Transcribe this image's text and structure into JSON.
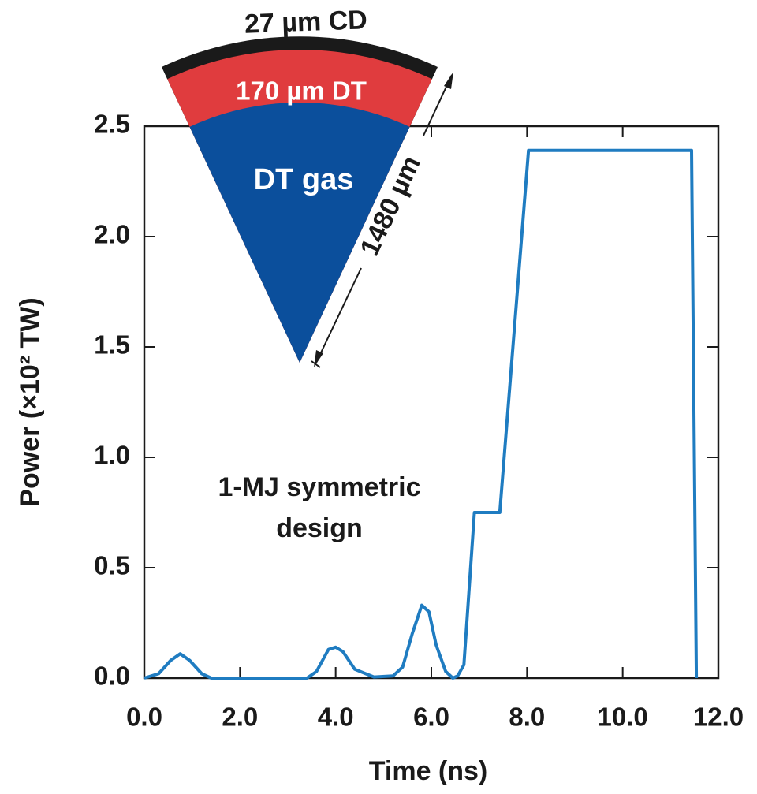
{
  "chart_data": {
    "type": "line",
    "xlabel": "Time (ns)",
    "ylabel": "Power (×10² TW)",
    "annotation": [
      "1-MJ symmetric",
      "design"
    ],
    "inset": {
      "outer_layer": "27 µm CD",
      "middle_layer": "170 µm DT",
      "core": "DT gas",
      "radius": "1480 µm"
    },
    "x": [
      0,
      0.3,
      0.55,
      0.75,
      0.95,
      1.2,
      1.4,
      3.4,
      3.6,
      3.85,
      4.0,
      4.15,
      4.4,
      4.8,
      5.2,
      5.4,
      5.6,
      5.8,
      5.95,
      6.1,
      6.3,
      6.45,
      6.55,
      6.68,
      6.9,
      7.43,
      8.03,
      11.44,
      11.54
    ],
    "values": [
      0,
      0.02,
      0.08,
      0.11,
      0.08,
      0.02,
      0,
      0,
      0.03,
      0.13,
      0.14,
      0.12,
      0.04,
      0.005,
      0.01,
      0.05,
      0.2,
      0.33,
      0.3,
      0.15,
      0.03,
      0,
      0.01,
      0.06,
      0.75,
      0.75,
      2.39,
      2.39,
      0
    ],
    "color": "#1f7cc1",
    "xlim": [
      0,
      12
    ],
    "xticks": [
      {
        "value": 0,
        "label": "0.0"
      },
      {
        "value": 2,
        "label": "2.0"
      },
      {
        "value": 4,
        "label": "4.0"
      },
      {
        "value": 6,
        "label": "6.0"
      },
      {
        "value": 8,
        "label": "8.0"
      },
      {
        "value": 10,
        "label": "10.0"
      },
      {
        "value": 12,
        "label": "12.0"
      }
    ],
    "ylim": [
      0,
      2.5
    ],
    "yticks": [
      {
        "value": 0,
        "label": "0.0"
      },
      0.5,
      {
        "value": 1,
        "label": "1.0"
      },
      1.5,
      {
        "value": 2,
        "label": "2.0"
      },
      2.5
    ]
  }
}
